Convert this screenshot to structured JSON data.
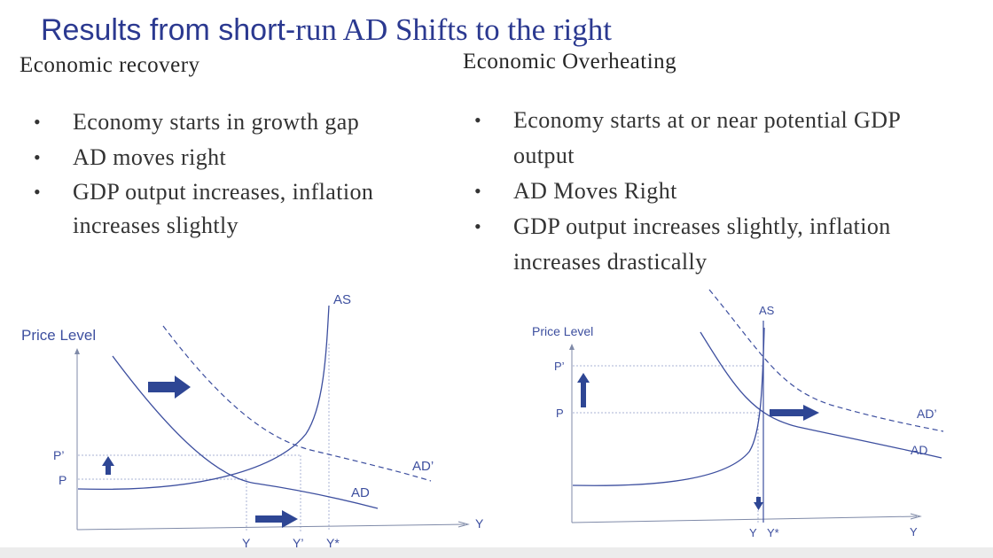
{
  "slide": {
    "title_part1": "Results from short-",
    "title_part2": "run AD Shifts to the right"
  },
  "left": {
    "heading": "Economic recovery",
    "bullets": [
      "Economy starts in growth gap",
      "AD moves right",
      "GDP output increases, inflation increases slightly"
    ],
    "graph": {
      "y_axis_label": "Price Level",
      "x_axis_label": "Y",
      "curve_as_label": "AS",
      "curve_ad_label": "AD",
      "curve_ad_shift_label": "AD’",
      "price_initial_label": "P",
      "price_new_label": "P’",
      "output_initial_label": "Y",
      "output_new_label": "Y’",
      "output_potential_label": "Y*"
    }
  },
  "right": {
    "heading": "Economic Overheating",
    "bullets": [
      "Economy starts at or near potential GDP output",
      "AD Moves Right",
      "GDP output increases slightly, inflation increases drastically"
    ],
    "graph": {
      "y_axis_label": "Price Level",
      "x_axis_label": "Y",
      "curve_as_label": "AS",
      "curve_ad_label": "AD",
      "curve_ad_shift_label": "AD’",
      "price_initial_label": "P",
      "price_new_label": "P’",
      "output_initial_label": "Y",
      "output_potential_label": "Y*"
    }
  },
  "colors": {
    "title": "#2b3990",
    "curve": "#3d4f9f",
    "arrow": "#2e4694",
    "text": "#333333"
  }
}
